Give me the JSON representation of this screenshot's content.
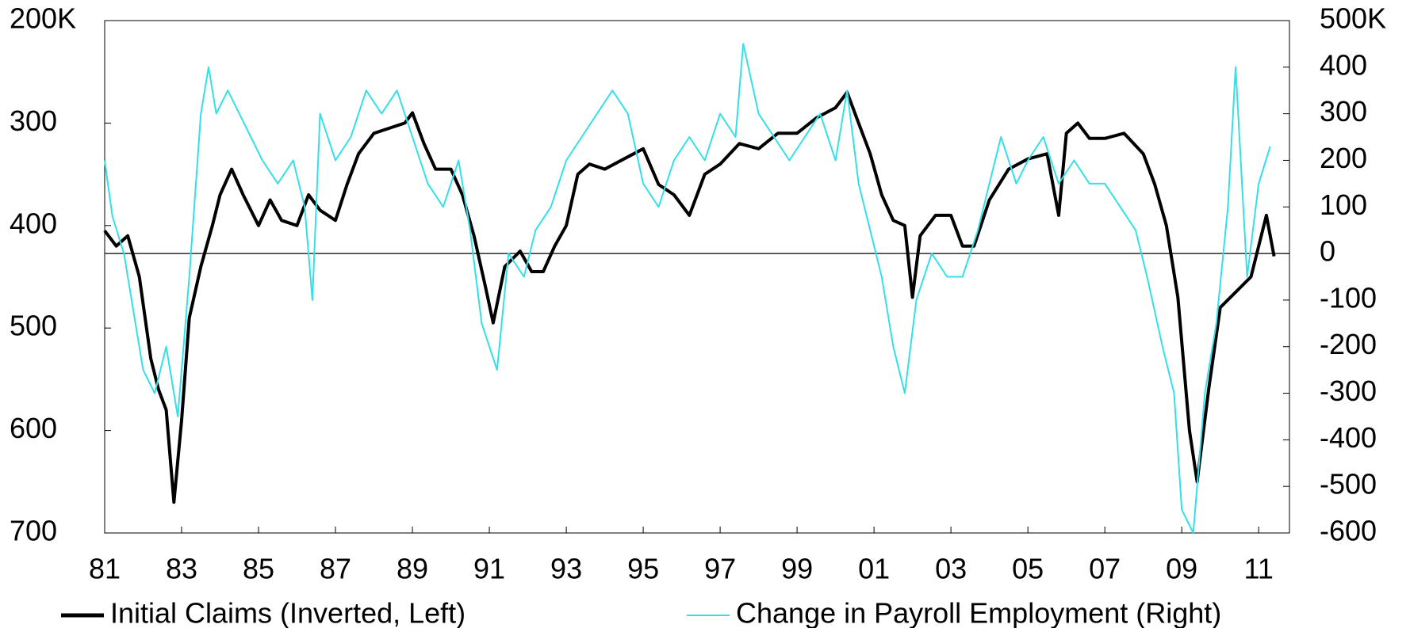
{
  "chart_data": {
    "type": "line",
    "xlim": [
      1981,
      2011.8
    ],
    "xticks": [
      {
        "value": 1981,
        "label": "81"
      },
      {
        "value": 1983,
        "label": "83"
      },
      {
        "value": 1985,
        "label": "85"
      },
      {
        "value": 1987,
        "label": "87"
      },
      {
        "value": 1989,
        "label": "89"
      },
      {
        "value": 1991,
        "label": "91"
      },
      {
        "value": 1993,
        "label": "93"
      },
      {
        "value": 1995,
        "label": "95"
      },
      {
        "value": 1997,
        "label": "97"
      },
      {
        "value": 1999,
        "label": "99"
      },
      {
        "value": 2001,
        "label": "01"
      },
      {
        "value": 2003,
        "label": "03"
      },
      {
        "value": 2005,
        "label": "05"
      },
      {
        "value": 2007,
        "label": "07"
      },
      {
        "value": 2009,
        "label": "09"
      },
      {
        "value": 2011,
        "label": "11"
      }
    ],
    "ylim": [
      700,
      200
    ],
    "yticks": [
      {
        "value": 200,
        "label": "200K"
      },
      300,
      400,
      500,
      600,
      700
    ],
    "y2lim": [
      -600,
      500
    ],
    "y2ticks": [
      -600,
      -500,
      -400,
      -300,
      -200,
      -100,
      0,
      100,
      200,
      300,
      400,
      {
        "value": 500,
        "label": "500K"
      }
    ],
    "zero_line": true,
    "legend": "bottom",
    "series": [
      {
        "name": "Initial Claims (Inverted, Left)",
        "color": "#000000",
        "axis": "y",
        "x": [
          1981.0,
          1981.3,
          1981.6,
          1981.9,
          1982.2,
          1982.4,
          1982.6,
          1982.8,
          1983.0,
          1983.2,
          1983.5,
          1983.8,
          1984.0,
          1984.3,
          1984.6,
          1985.0,
          1985.3,
          1985.6,
          1986.0,
          1986.3,
          1986.6,
          1987.0,
          1987.3,
          1987.6,
          1988.0,
          1988.4,
          1988.8,
          1989.0,
          1989.3,
          1989.6,
          1990.0,
          1990.3,
          1990.6,
          1990.9,
          1991.1,
          1991.4,
          1991.8,
          1992.1,
          1992.4,
          1992.7,
          1993.0,
          1993.3,
          1993.6,
          1994.0,
          1994.5,
          1995.0,
          1995.4,
          1995.8,
          1996.2,
          1996.6,
          1997.0,
          1997.5,
          1998.0,
          1998.5,
          1999.0,
          1999.5,
          2000.0,
          2000.3,
          2000.6,
          2000.9,
          2001.2,
          2001.5,
          2001.8,
          2002.0,
          2002.2,
          2002.6,
          2003.0,
          2003.3,
          2003.6,
          2004.0,
          2004.5,
          2005.0,
          2005.5,
          2005.8,
          2006.0,
          2006.3,
          2006.6,
          2007.0,
          2007.5,
          2008.0,
          2008.3,
          2008.6,
          2008.9,
          2009.2,
          2009.4,
          2009.7,
          2010.0,
          2010.4,
          2010.8,
          2011.0,
          2011.2,
          2011.4
        ],
        "values": [
          405,
          420,
          410,
          450,
          530,
          560,
          580,
          670,
          590,
          490,
          440,
          400,
          370,
          345,
          370,
          400,
          375,
          395,
          400,
          370,
          385,
          395,
          360,
          330,
          310,
          305,
          300,
          290,
          320,
          345,
          345,
          370,
          410,
          460,
          495,
          440,
          425,
          445,
          445,
          420,
          400,
          350,
          340,
          345,
          335,
          325,
          360,
          370,
          390,
          350,
          340,
          320,
          325,
          310,
          310,
          295,
          285,
          270,
          300,
          330,
          370,
          395,
          400,
          470,
          410,
          390,
          390,
          420,
          420,
          375,
          345,
          335,
          330,
          390,
          310,
          300,
          315,
          315,
          310,
          330,
          360,
          400,
          470,
          600,
          650,
          560,
          480,
          465,
          450,
          420,
          390,
          430
        ]
      },
      {
        "name": "Change in Payroll Employment (Right)",
        "color": "#33e0e8",
        "axis": "y2",
        "x": [
          1981.0,
          1981.2,
          1981.5,
          1981.8,
          1982.0,
          1982.3,
          1982.6,
          1982.9,
          1983.2,
          1983.5,
          1983.7,
          1983.9,
          1984.2,
          1984.5,
          1984.8,
          1985.1,
          1985.5,
          1985.9,
          1986.2,
          1986.4,
          1986.6,
          1987.0,
          1987.4,
          1987.8,
          1988.2,
          1988.6,
          1989.0,
          1989.4,
          1989.8,
          1990.2,
          1990.5,
          1990.8,
          1991.0,
          1991.2,
          1991.5,
          1991.9,
          1992.2,
          1992.6,
          1993.0,
          1993.4,
          1993.8,
          1994.2,
          1994.6,
          1995.0,
          1995.4,
          1995.8,
          1996.2,
          1996.6,
          1997.0,
          1997.4,
          1997.6,
          1998.0,
          1998.4,
          1998.8,
          1999.2,
          1999.6,
          2000.0,
          2000.3,
          2000.6,
          2000.9,
          2001.2,
          2001.5,
          2001.8,
          2002.1,
          2002.5,
          2002.9,
          2003.3,
          2003.7,
          2004.0,
          2004.3,
          2004.7,
          2005.0,
          2005.4,
          2005.8,
          2006.2,
          2006.6,
          2007.0,
          2007.4,
          2007.8,
          2008.1,
          2008.5,
          2008.8,
          2009.0,
          2009.3,
          2009.6,
          2009.9,
          2010.2,
          2010.4,
          2010.7,
          2011.0,
          2011.3
        ],
        "values": [
          200,
          80,
          0,
          -150,
          -250,
          -300,
          -200,
          -350,
          -50,
          300,
          400,
          300,
          350,
          300,
          250,
          200,
          150,
          200,
          100,
          -100,
          300,
          200,
          250,
          350,
          300,
          350,
          250,
          150,
          100,
          200,
          50,
          -150,
          -200,
          -250,
          0,
          -50,
          50,
          100,
          200,
          250,
          300,
          350,
          300,
          150,
          100,
          200,
          250,
          200,
          300,
          250,
          450,
          300,
          250,
          200,
          250,
          300,
          200,
          350,
          150,
          50,
          -50,
          -200,
          -300,
          -100,
          0,
          -50,
          -50,
          50,
          150,
          250,
          150,
          200,
          250,
          150,
          200,
          150,
          150,
          100,
          50,
          -50,
          -200,
          -300,
          -550,
          -600,
          -300,
          -150,
          100,
          400,
          -50,
          150,
          230
        ]
      }
    ]
  }
}
